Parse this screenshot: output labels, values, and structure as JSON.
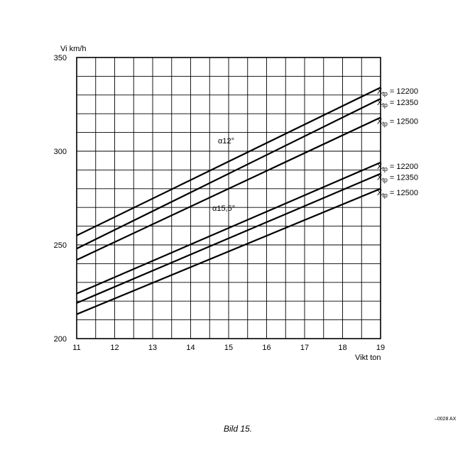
{
  "chart_data": {
    "type": "line",
    "ylabel": "Vi km/h",
    "xlabel": "Vikt ton",
    "xlim": [
      11,
      19
    ],
    "ylim": [
      200,
      350
    ],
    "x_ticks": [
      11,
      12,
      13,
      14,
      15,
      16,
      17,
      18,
      19
    ],
    "y_ticks": [
      200,
      250,
      300,
      350
    ],
    "grid": true,
    "series": [
      {
        "group": "α12°",
        "name": "Xtp = 12200",
        "x": [
          11,
          19
        ],
        "y": [
          255,
          334
        ]
      },
      {
        "group": "α12°",
        "name": "Xtp = 12350",
        "x": [
          11,
          19
        ],
        "y": [
          248,
          328
        ]
      },
      {
        "group": "α12°",
        "name": "Xtp = 12500",
        "x": [
          11,
          19
        ],
        "y": [
          242,
          318
        ]
      },
      {
        "group": "α15,5°",
        "name": "Xtp = 12200",
        "x": [
          11,
          19
        ],
        "y": [
          224,
          294
        ]
      },
      {
        "group": "α15,5°",
        "name": "Xtp = 12350",
        "x": [
          11,
          19
        ],
        "y": [
          219,
          288
        ]
      },
      {
        "group": "α15,5°",
        "name": "Xtp = 12500",
        "x": [
          11,
          19
        ],
        "y": [
          213,
          280
        ]
      }
    ],
    "annotations": [
      "α12°",
      "α15,5°"
    ]
  },
  "caption": "Bild 15.",
  "reference": "–0028 AX"
}
